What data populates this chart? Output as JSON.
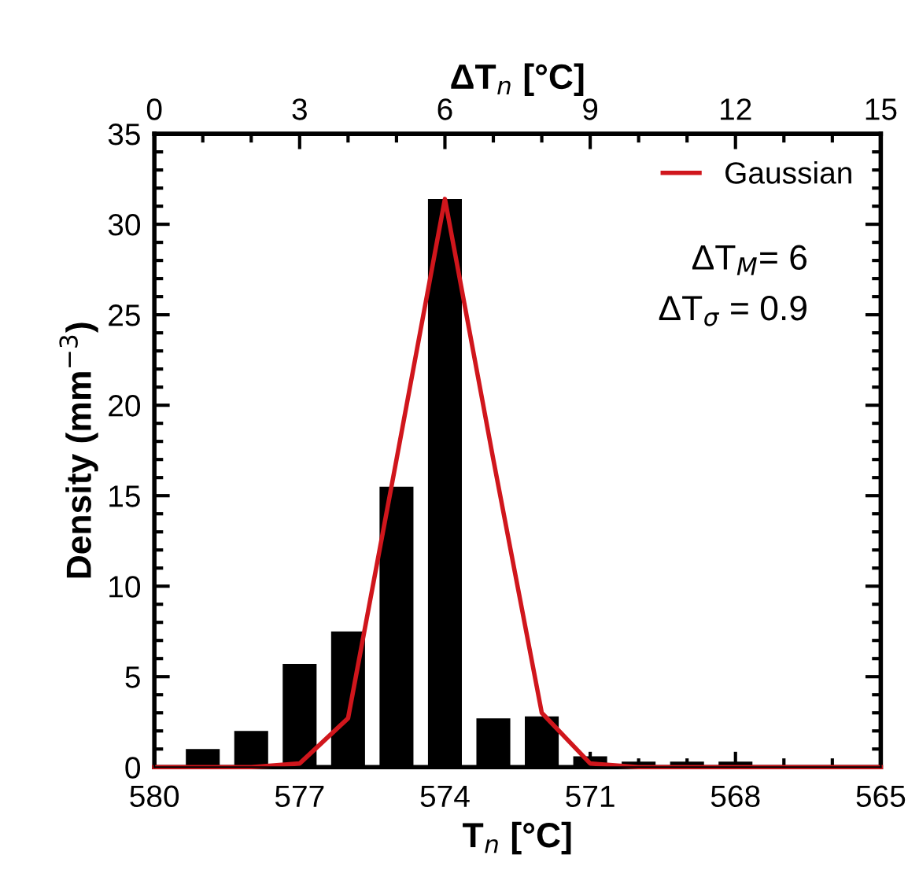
{
  "chart_data": {
    "type": "bar",
    "xlabel": "T$_{n}$ [°C]",
    "x2label": "ΔT$_{n}$ [°C]",
    "ylabel": "Density (mm$^{−3}$)",
    "xlim": [
      580,
      565
    ],
    "xticks": [
      580,
      577,
      574,
      571,
      568,
      565
    ],
    "x2lim": [
      0,
      15
    ],
    "x2ticks": [
      0,
      3,
      6,
      9,
      12,
      15
    ],
    "ylim": [
      0,
      35
    ],
    "yticks": [
      0,
      5,
      10,
      15,
      20,
      25,
      30,
      35
    ],
    "series": [
      {
        "color": "#000000",
        "x": [
          579,
          578,
          577,
          576,
          575,
          574,
          573,
          572,
          571,
          570,
          569,
          568,
          567,
          566,
          565
        ],
        "values": [
          1.0,
          2.0,
          5.7,
          7.5,
          15.5,
          31.4,
          2.7,
          2.8,
          0.6,
          0.3,
          0.3,
          0.3,
          0.1,
          0.1,
          0.1
        ]
      },
      {
        "type": "line",
        "name": "Gaussian",
        "color": "#d0161c",
        "x": [
          580,
          579,
          578,
          577,
          576,
          575,
          574,
          573,
          572,
          571,
          570,
          569,
          568,
          567,
          566,
          565
        ],
        "values": [
          0,
          0,
          0,
          0.2,
          2.7,
          17,
          31.4,
          17,
          3.0,
          0.2,
          0,
          0,
          0,
          0,
          0,
          0
        ]
      }
    ],
    "annotations": [
      "ΔT$_{M}$= 6",
      "ΔT$_{σ}$ = 0.9"
    ],
    "legend": "top right",
    "grid": false
  }
}
